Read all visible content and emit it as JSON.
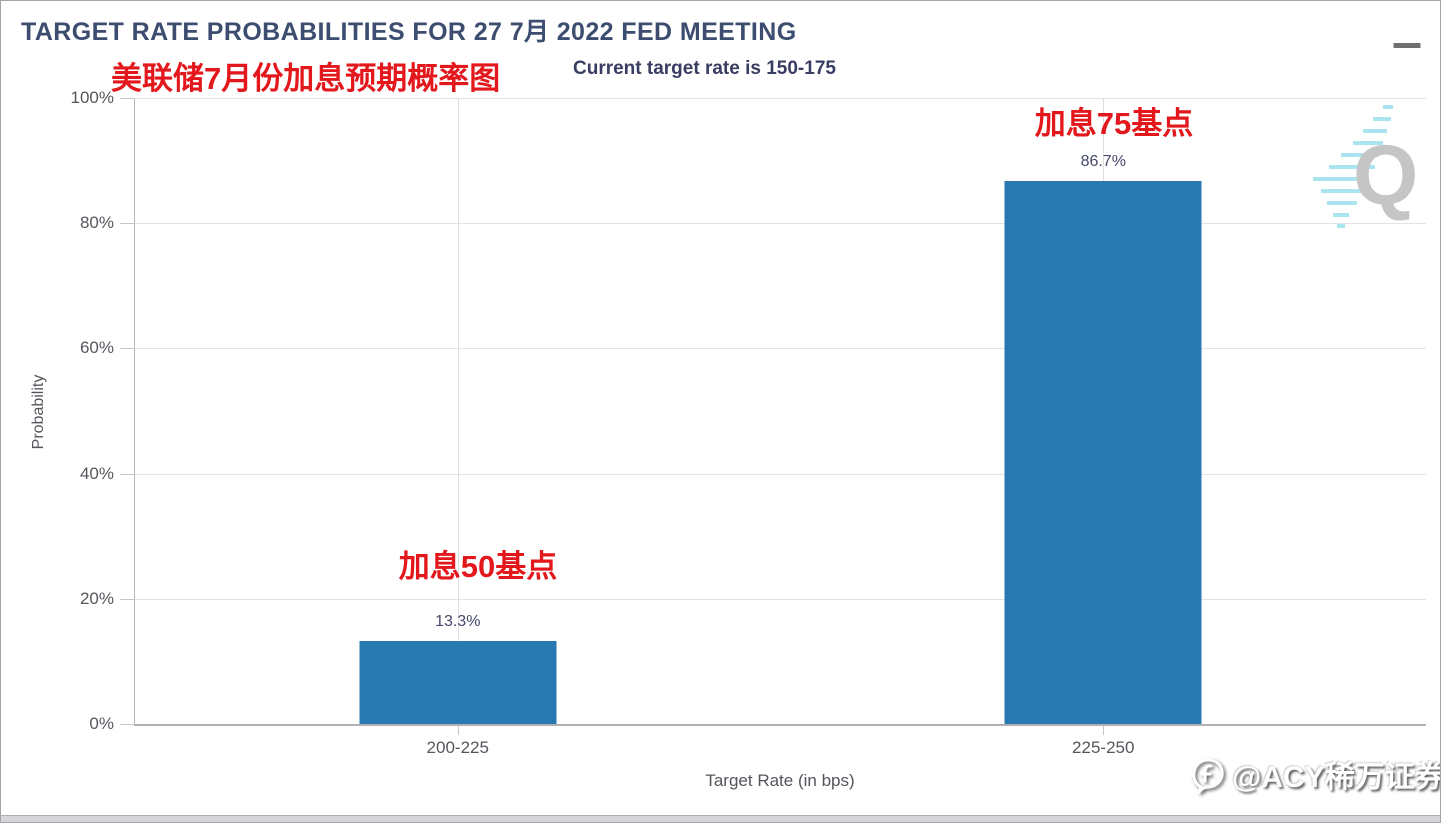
{
  "header": {
    "menu_icon": "hamburger-icon"
  },
  "annotations": {
    "main_title": "美联储7月份加息预期概率图",
    "bar1": "加息50基点",
    "bar2": "加息75基点"
  },
  "chart_data": {
    "type": "bar",
    "title": "TARGET RATE PROBABILITIES FOR 27 7月 2022 FED MEETING",
    "subtitle": "Current target rate is 150-175",
    "categories": [
      "200-225",
      "225-250"
    ],
    "values": [
      13.3,
      86.7
    ],
    "value_labels": [
      "13.3%",
      "86.7%"
    ],
    "xlabel": "Target Rate (in bps)",
    "ylabel": "Probability",
    "ylim": [
      0,
      100
    ],
    "ytick_labels": [
      "100%",
      "80%",
      "60%",
      "40%",
      "20%",
      "0%"
    ],
    "grid": "horizontal 20% steps + vertical line per category",
    "legend": "none",
    "bar_color": "#2879b2"
  },
  "watermarks": {
    "q_letter": "Q",
    "acy_label": "@ACY稀万证券",
    "acy_icon": "wechat-channels-icon"
  },
  "colors": {
    "title_text": "#3c4d70",
    "annotation_red": "#e3181d",
    "bar_blue": "#2879b2",
    "axis_text": "#55565c",
    "gridline": "#e3e3e5",
    "q_streak_cyan": "#8edce9"
  }
}
